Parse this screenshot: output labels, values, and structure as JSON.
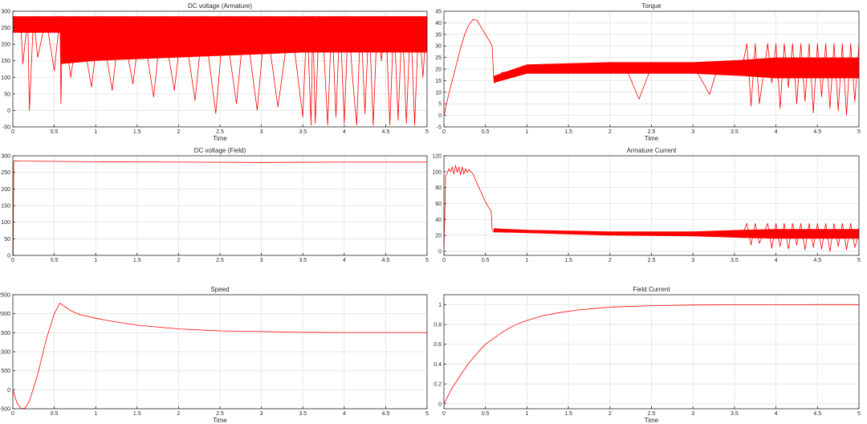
{
  "chart_data": [
    {
      "id": "armature-voltage",
      "type": "line",
      "title": "DC voltage (Armature)",
      "xlabel": "Time",
      "xlim": [
        0,
        5
      ],
      "ylim": [
        -50,
        300
      ],
      "xticks": [
        0,
        0.5,
        1,
        1.5,
        2,
        2.5,
        3,
        3.5,
        4,
        4.5,
        5
      ],
      "yticks": [
        -50,
        0,
        50,
        100,
        150,
        200,
        250,
        300
      ],
      "grid": true,
      "color": "#ff0000",
      "envelope": {
        "x": [
          0,
          0.5,
          0.57,
          0.58,
          1,
          2,
          3,
          3.5,
          3.6,
          4,
          4.5,
          5
        ],
        "upper": [
          285,
          285,
          285,
          285,
          285,
          285,
          285,
          285,
          285,
          285,
          285,
          285
        ],
        "lower": [
          235,
          235,
          235,
          140,
          150,
          160,
          170,
          175,
          175,
          175,
          175,
          175
        ]
      },
      "x": [
        0,
        0.02,
        0.1,
        0.12,
        0.18,
        0.2,
        0.25,
        0.3,
        0.4,
        0.5,
        0.57,
        0.58,
        0.6,
        0.7,
        0.8,
        0.95,
        1.05,
        1.2,
        1.3,
        1.45,
        1.55,
        1.7,
        1.8,
        1.95,
        2.05,
        2.2,
        2.3,
        2.45,
        2.55,
        2.7,
        2.8,
        2.95,
        3.05,
        3.2,
        3.35,
        3.5,
        3.55,
        3.6,
        3.62,
        3.65,
        3.7,
        3.75,
        3.8,
        3.85,
        3.9,
        3.95,
        4.0,
        4.05,
        4.1,
        4.15,
        4.2,
        4.25,
        4.3,
        4.35,
        4.4,
        4.45,
        4.5,
        4.55,
        4.6,
        4.65,
        4.7,
        4.75,
        4.8,
        4.85,
        4.9,
        4.95,
        5.0
      ],
      "y": [
        240,
        285,
        240,
        140,
        280,
        0,
        285,
        160,
        280,
        120,
        285,
        20,
        285,
        100,
        285,
        70,
        285,
        60,
        285,
        80,
        285,
        40,
        285,
        60,
        285,
        30,
        285,
        -10,
        285,
        20,
        285,
        0,
        285,
        10,
        285,
        -20,
        285,
        -45,
        285,
        -40,
        285,
        200,
        -45,
        285,
        -20,
        285,
        -40,
        285,
        100,
        -45,
        285,
        -10,
        285,
        -45,
        285,
        150,
        285,
        -45,
        285,
        -30,
        285,
        -40,
        285,
        -45,
        285,
        100,
        285
      ]
    },
    {
      "id": "field-voltage",
      "type": "line",
      "title": "DC voltage (Field)",
      "xlabel": "",
      "xlim": [
        0,
        5
      ],
      "ylim": [
        0,
        300
      ],
      "xticks": [
        0,
        0.5,
        1,
        1.5,
        2,
        2.5,
        3,
        3.5,
        4,
        4.5,
        5
      ],
      "yticks": [
        0,
        50,
        100,
        150,
        200,
        250,
        300
      ],
      "grid": true,
      "color": "#ff0000",
      "x": [
        0,
        0.005,
        0.01,
        0.015,
        0.02,
        0.1,
        0.5,
        1,
        2,
        3,
        4,
        5
      ],
      "y": [
        0,
        0,
        280,
        285,
        285,
        284,
        283,
        282,
        281,
        280,
        281,
        281
      ]
    },
    {
      "id": "speed",
      "type": "line",
      "title": "Speed",
      "xlabel": "Time",
      "xlim": [
        0,
        5
      ],
      "ylim": [
        -500,
        2500
      ],
      "xticks": [
        0,
        0.5,
        1,
        1.5,
        2,
        2.5,
        3,
        3.5,
        4,
        4.5,
        5
      ],
      "yticks": [
        -500,
        0,
        500,
        1000,
        1500,
        2000,
        2500
      ],
      "grid": true,
      "color": "#ff0000",
      "x": [
        0,
        0.05,
        0.1,
        0.15,
        0.2,
        0.3,
        0.4,
        0.5,
        0.57,
        0.6,
        0.7,
        0.8,
        1.0,
        1.2,
        1.5,
        2.0,
        2.5,
        3.0,
        3.5,
        4.0,
        4.5,
        5.0
      ],
      "y": [
        0,
        -350,
        -500,
        -480,
        -300,
        400,
        1300,
        2000,
        2280,
        2230,
        2080,
        1980,
        1880,
        1800,
        1700,
        1600,
        1550,
        1530,
        1510,
        1505,
        1505,
        1505
      ]
    },
    {
      "id": "torque",
      "type": "line",
      "title": "Torque",
      "xlabel": "Time",
      "xlim": [
        0,
        5
      ],
      "ylim": [
        -5,
        45
      ],
      "xticks": [
        0,
        0.5,
        1,
        1.5,
        2,
        2.5,
        3,
        3.5,
        4,
        4.5,
        5
      ],
      "yticks": [
        -5,
        0,
        5,
        10,
        15,
        20,
        25,
        30,
        35,
        40,
        45
      ],
      "grid": true,
      "color": "#ff0000",
      "envelope": {
        "x": [
          0.6,
          1,
          2,
          3,
          3.6,
          4,
          4.5,
          5
        ],
        "upper": [
          17,
          22,
          23,
          23,
          24,
          25,
          25,
          25
        ],
        "lower": [
          14,
          18,
          18,
          18,
          17,
          16,
          16,
          16
        ]
      },
      "x": [
        0,
        0.05,
        0.1,
        0.15,
        0.2,
        0.25,
        0.3,
        0.35,
        0.4,
        0.45,
        0.5,
        0.55,
        0.58,
        0.6,
        0.62,
        0.65,
        0.7,
        0.8,
        0.9,
        1.0,
        1.1,
        1.3,
        1.5,
        1.7,
        1.9,
        2.0,
        2.2,
        2.35,
        2.5,
        2.6,
        2.8,
        3.0,
        3.2,
        3.3,
        3.5,
        3.6,
        3.65,
        3.7,
        3.75,
        3.8,
        3.9,
        3.95,
        4.0,
        4.05,
        4.1,
        4.15,
        4.2,
        4.25,
        4.3,
        4.35,
        4.4,
        4.45,
        4.5,
        4.55,
        4.6,
        4.65,
        4.7,
        4.75,
        4.8,
        4.85,
        4.9,
        4.95,
        5.0
      ],
      "y": [
        0,
        8,
        15,
        22,
        29,
        35,
        39,
        41.5,
        41,
        38,
        35,
        32,
        30,
        16,
        14,
        17,
        18.5,
        19,
        19.5,
        19.5,
        20,
        20,
        21,
        20,
        21,
        21,
        20,
        7,
        21,
        21,
        22,
        22,
        9,
        21,
        22,
        22,
        31,
        4,
        31,
        5,
        31,
        14,
        31,
        3,
        31,
        12,
        31,
        5,
        31,
        6,
        31,
        1,
        31,
        8,
        31,
        3,
        31,
        2,
        31,
        0,
        31,
        6,
        31
      ]
    },
    {
      "id": "armature-current",
      "type": "line",
      "title": "Armature Current",
      "xlabel": "",
      "xlim": [
        0,
        5
      ],
      "ylim": [
        -5,
        120
      ],
      "xticks": [
        0,
        0.5,
        1,
        1.5,
        2,
        2.5,
        3,
        3.5,
        4,
        4.5,
        5
      ],
      "yticks": [
        0,
        20,
        40,
        60,
        80,
        100,
        120
      ],
      "grid": true,
      "color": "#ff0000",
      "envelope": {
        "x": [
          0.6,
          1,
          2,
          3,
          3.6,
          4,
          4.5,
          5
        ],
        "upper": [
          29,
          27,
          25,
          25,
          27,
          28,
          28,
          28
        ],
        "lower": [
          24,
          23,
          20,
          19,
          17,
          16,
          16,
          16
        ]
      },
      "x": [
        0,
        0.02,
        0.04,
        0.06,
        0.08,
        0.1,
        0.12,
        0.14,
        0.16,
        0.18,
        0.2,
        0.22,
        0.24,
        0.26,
        0.28,
        0.3,
        0.35,
        0.4,
        0.5,
        0.57,
        0.58,
        0.6,
        0.62,
        0.65,
        0.8,
        1.0,
        1.5,
        2.0,
        2.5,
        3.0,
        3.5,
        3.6,
        3.65,
        3.7,
        3.75,
        3.8,
        3.9,
        3.95,
        4.0,
        4.05,
        4.1,
        4.15,
        4.2,
        4.25,
        4.3,
        4.35,
        4.4,
        4.45,
        4.5,
        4.55,
        4.6,
        4.65,
        4.7,
        4.75,
        4.8,
        4.85,
        4.9,
        4.95,
        5.0
      ],
      "y": [
        0,
        95,
        98,
        104,
        100,
        106,
        97,
        108,
        99,
        106,
        96,
        106,
        97,
        104,
        99,
        103,
        97,
        85,
        62,
        50,
        28,
        24,
        28,
        27,
        27,
        25,
        23,
        22,
        22,
        22,
        22,
        22,
        35,
        8,
        35,
        10,
        35,
        4,
        35,
        6,
        35,
        3,
        35,
        8,
        35,
        2,
        35,
        5,
        35,
        3,
        35,
        0,
        35,
        6,
        35,
        2,
        35,
        5,
        23
      ]
    },
    {
      "id": "field-current",
      "type": "line",
      "title": "Field Current",
      "xlabel": "Time",
      "xlim": [
        0,
        5
      ],
      "ylim": [
        -0.05,
        1.1
      ],
      "xticks": [
        0,
        0.5,
        1,
        1.5,
        2,
        2.5,
        3,
        3.5,
        4,
        4.5,
        5
      ],
      "yticks": [
        0,
        0.2,
        0.4,
        0.6,
        0.8,
        1
      ],
      "grid": true,
      "color": "#ff0000",
      "x": [
        0,
        0.1,
        0.2,
        0.3,
        0.4,
        0.5,
        0.6,
        0.7,
        0.8,
        0.9,
        1.0,
        1.2,
        1.4,
        1.6,
        1.8,
        2.0,
        2.5,
        3.0,
        3.5,
        4.0,
        4.5,
        5.0
      ],
      "y": [
        0,
        0.16,
        0.29,
        0.41,
        0.51,
        0.6,
        0.66,
        0.72,
        0.77,
        0.81,
        0.84,
        0.89,
        0.92,
        0.945,
        0.96,
        0.975,
        0.99,
        0.996,
        0.998,
        0.999,
        1.0,
        1.0
      ]
    }
  ]
}
